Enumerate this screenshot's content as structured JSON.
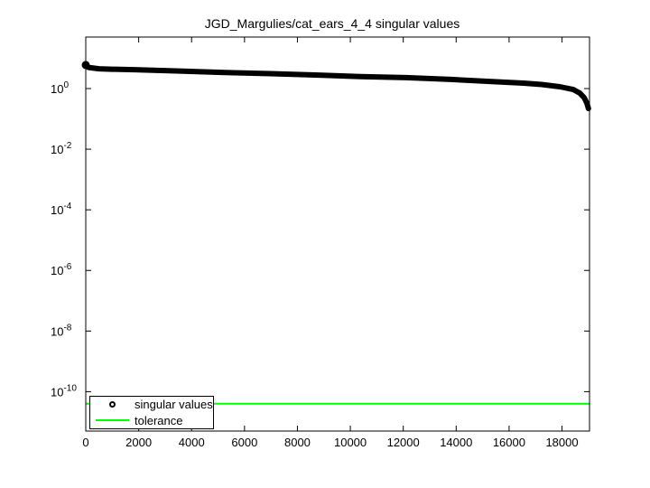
{
  "figure": {
    "background": "#ffffff"
  },
  "chart_data": {
    "type": "line",
    "title": "JGD_Margulies/cat_ears_4_4 singular values",
    "xlabel": "",
    "ylabel": "",
    "y_scale": "log",
    "grid": false,
    "xlim": [
      0,
      19040
    ],
    "ylim_log10": [
      -11.3,
      1.7
    ],
    "x_ticks": [
      0,
      2000,
      4000,
      6000,
      8000,
      10000,
      12000,
      14000,
      16000,
      18000
    ],
    "y_tick_exponents": [
      0,
      -2,
      -4,
      -6,
      -8,
      -10
    ],
    "colors": {
      "curve": "#000000",
      "tolerance": "#00ff00",
      "axes": "#000000"
    },
    "legend": {
      "position": "southwest",
      "entries": [
        "singular values",
        "tolerance"
      ]
    },
    "series": [
      {
        "name": "singular values",
        "color": "#000000",
        "marker": "o",
        "points": [
          [
            0,
            6.0
          ],
          [
            100,
            5.0
          ],
          [
            500,
            4.5
          ],
          [
            1000,
            4.35
          ],
          [
            1850,
            4.2
          ],
          [
            3550,
            3.8
          ],
          [
            5270,
            3.4
          ],
          [
            6980,
            3.1
          ],
          [
            8680,
            2.8
          ],
          [
            10390,
            2.5
          ],
          [
            12100,
            2.3
          ],
          [
            13810,
            2.0
          ],
          [
            15520,
            1.67
          ],
          [
            16550,
            1.51
          ],
          [
            17230,
            1.36
          ],
          [
            17920,
            1.15
          ],
          [
            18430,
            0.93
          ],
          [
            18670,
            0.71
          ],
          [
            18840,
            0.5
          ],
          [
            18940,
            0.33
          ],
          [
            19000,
            0.22
          ]
        ]
      },
      {
        "name": "tolerance",
        "color": "#00ff00",
        "value": 4e-11
      }
    ]
  }
}
